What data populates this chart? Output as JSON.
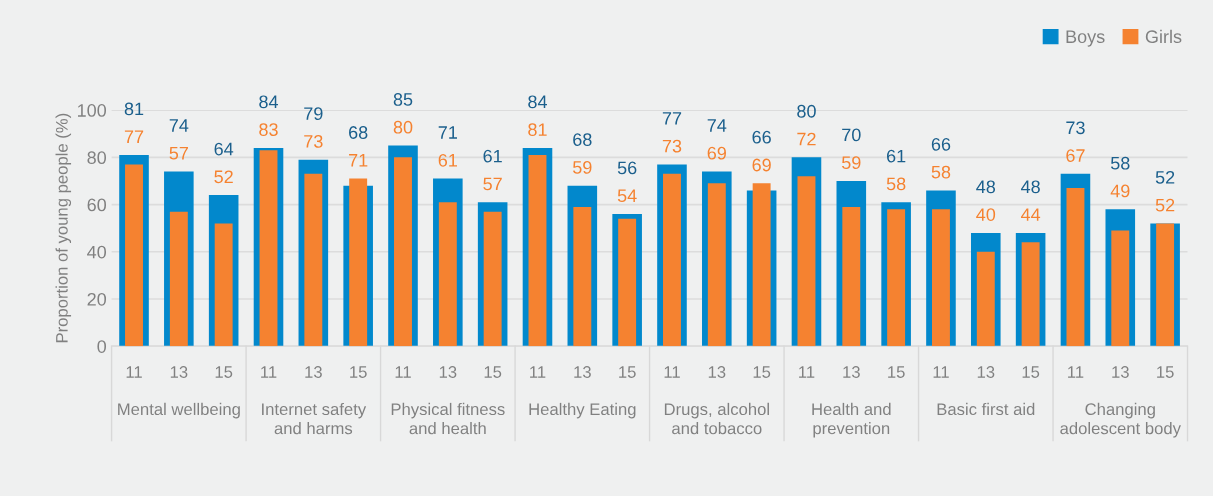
{
  "chart_data": {
    "type": "bar",
    "ylabel": "Proportion of young people (%)",
    "categories": [
      "11",
      "13",
      "15",
      "11",
      "13",
      "15",
      "11",
      "13",
      "15",
      "11",
      "13",
      "15",
      "11",
      "13",
      "15",
      "11",
      "13",
      "15",
      "11",
      "13",
      "15",
      "11",
      "13",
      "15"
    ],
    "series": [
      {
        "name": "Boys",
        "color": "#0288cc",
        "values": [
          81,
          74,
          64,
          84,
          79,
          68,
          85,
          71,
          61,
          84,
          68,
          56,
          77,
          74,
          66,
          80,
          70,
          61,
          66,
          48,
          48,
          73,
          58,
          52
        ]
      },
      {
        "name": "Girls",
        "color": "#f58230",
        "values": [
          77,
          57,
          52,
          83,
          73,
          71,
          80,
          61,
          57,
          81,
          59,
          54,
          73,
          69,
          69,
          72,
          59,
          58,
          58,
          40,
          44,
          67,
          49,
          52
        ]
      }
    ],
    "annotations": [
      "Mental wellbeing",
      "Internet safety\nand harms",
      "Physical fitness\nand health",
      "Healthy Eating",
      "Drugs, alcohol\nand tobacco",
      "Health and\nprevention",
      "Basic first aid",
      "Changing\nadolescent body"
    ],
    "ylim": [
      0,
      100
    ],
    "yticks": [
      0,
      20,
      40,
      60,
      80,
      100
    ],
    "grid": "y",
    "legend": "top right",
    "data_labels": true
  }
}
